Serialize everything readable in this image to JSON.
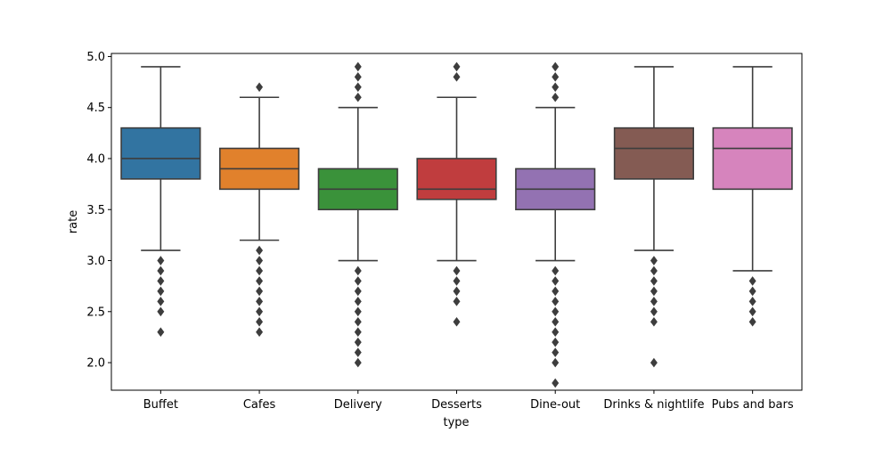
{
  "chart_data": {
    "type": "box",
    "xlabel": "type",
    "ylabel": "rate",
    "ylim": [
      1.73,
      5.03
    ],
    "yticks": [
      2.0,
      2.5,
      3.0,
      3.5,
      4.0,
      4.5,
      5.0
    ],
    "ytick_labels": [
      "2.0",
      "2.5",
      "3.0",
      "3.5",
      "4.0",
      "4.5",
      "5.0"
    ],
    "grid": false,
    "categories": [
      {
        "name": "Buffet",
        "color": "#3274a1",
        "whisker_low": 3.1,
        "q1": 3.8,
        "median": 4.0,
        "q3": 4.3,
        "whisker_high": 4.9,
        "outliers": [
          3.0,
          2.9,
          2.8,
          2.7,
          2.6,
          2.5,
          2.3
        ]
      },
      {
        "name": "Cafes",
        "color": "#e1812c",
        "whisker_low": 3.2,
        "q1": 3.7,
        "median": 3.9,
        "q3": 4.1,
        "whisker_high": 4.6,
        "outliers": [
          4.7,
          3.1,
          3.0,
          2.9,
          2.8,
          2.7,
          2.6,
          2.5,
          2.4,
          2.3
        ]
      },
      {
        "name": "Delivery",
        "color": "#3a923a",
        "whisker_low": 3.0,
        "q1": 3.5,
        "median": 3.7,
        "q3": 3.9,
        "whisker_high": 4.5,
        "outliers": [
          4.9,
          4.8,
          4.7,
          4.6,
          2.9,
          2.8,
          2.7,
          2.6,
          2.5,
          2.4,
          2.3,
          2.2,
          2.1,
          2.0
        ]
      },
      {
        "name": "Desserts",
        "color": "#c03d3e",
        "whisker_low": 3.0,
        "q1": 3.6,
        "median": 3.7,
        "q3": 4.0,
        "whisker_high": 4.6,
        "outliers": [
          4.9,
          4.8,
          2.9,
          2.8,
          2.7,
          2.6,
          2.4
        ]
      },
      {
        "name": "Dine-out",
        "color": "#9372b2",
        "whisker_low": 3.0,
        "q1": 3.5,
        "median": 3.7,
        "q3": 3.9,
        "whisker_high": 4.5,
        "outliers": [
          4.9,
          4.8,
          4.7,
          4.6,
          2.9,
          2.8,
          2.7,
          2.6,
          2.5,
          2.4,
          2.3,
          2.2,
          2.1,
          2.0,
          1.8
        ]
      },
      {
        "name": "Drinks & nightlife",
        "color": "#845b53",
        "whisker_low": 3.1,
        "q1": 3.8,
        "median": 4.1,
        "q3": 4.3,
        "whisker_high": 4.9,
        "outliers": [
          3.0,
          2.9,
          2.8,
          2.7,
          2.6,
          2.5,
          2.4,
          2.0
        ]
      },
      {
        "name": "Pubs and bars",
        "color": "#d684bd",
        "whisker_low": 2.9,
        "q1": 3.7,
        "median": 4.1,
        "q3": 4.3,
        "whisker_high": 4.9,
        "outliers": [
          2.8,
          2.7,
          2.6,
          2.5,
          2.4
        ]
      }
    ]
  }
}
